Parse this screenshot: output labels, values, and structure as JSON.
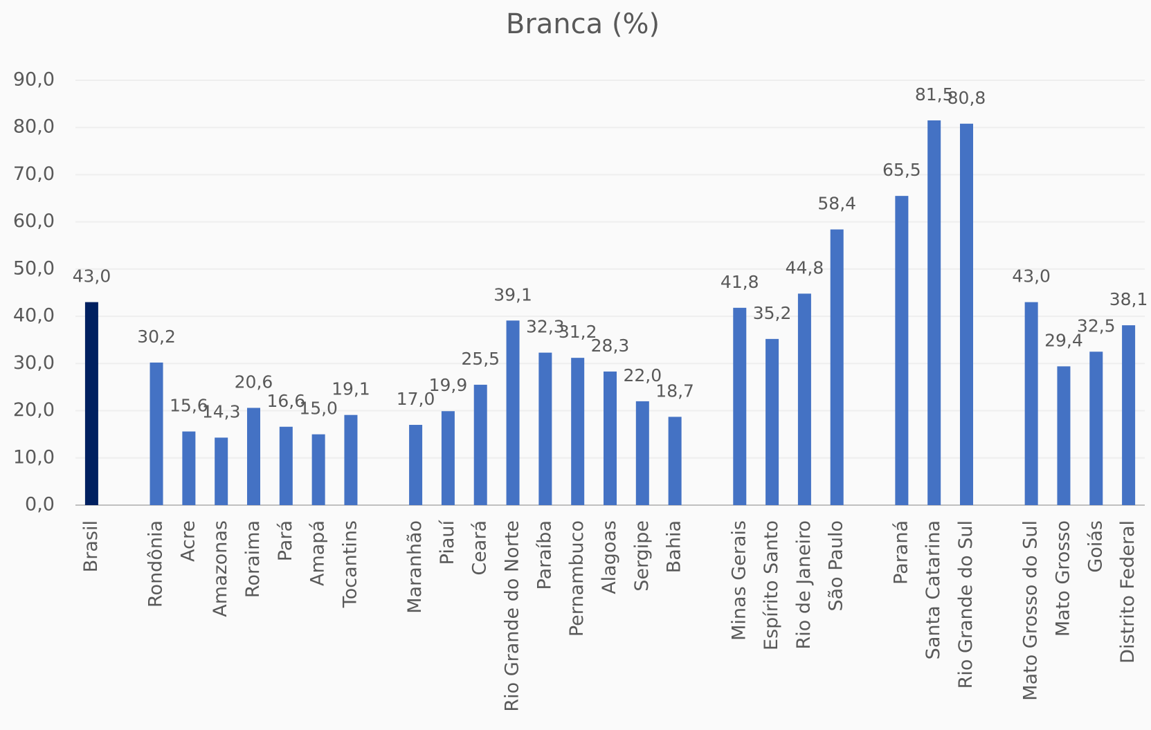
{
  "chart_data": {
    "type": "bar",
    "title": "Branca (%)",
    "categories": [
      "Brasil",
      null,
      "Rondônia",
      "Acre",
      "Amazonas",
      "Roraima",
      "Pará",
      "Amapá",
      "Tocantins",
      null,
      "Maranhão",
      "Piauí",
      "Ceará",
      "Rio Grande do Norte",
      "Paraíba",
      "Pernambuco",
      "Alagoas",
      "Sergipe",
      "Bahia",
      null,
      "Minas Gerais",
      "Espírito Santo",
      "Rio de Janeiro",
      "São Paulo",
      null,
      "Paraná",
      "Santa Catarina",
      "Rio Grande do Sul",
      null,
      "Mato Grosso do Sul",
      "Mato Grosso",
      "Goiás",
      "Distrito Federal"
    ],
    "values": [
      43.0,
      null,
      30.2,
      15.6,
      14.3,
      20.6,
      16.6,
      15.0,
      19.1,
      null,
      17.0,
      19.9,
      25.5,
      39.1,
      32.3,
      31.2,
      28.3,
      22.0,
      18.7,
      null,
      41.8,
      35.2,
      44.8,
      58.4,
      null,
      65.5,
      81.5,
      80.8,
      null,
      43.0,
      29.4,
      32.5,
      38.1
    ],
    "value_labels": [
      "43,0",
      null,
      "30,2",
      "15,6",
      "14,3",
      "20,6",
      "16,6",
      "15,0",
      "19,1",
      null,
      "17,0",
      "19,9",
      "25,5",
      "39,1",
      "32,3",
      "31,2",
      "28,3",
      "22,0",
      "18,7",
      null,
      "41,8",
      "35,2",
      "44,8",
      "58,4",
      null,
      "65,5",
      "81,5",
      "80,8",
      null,
      "43,0",
      "29,4",
      "32,5",
      "38,1"
    ],
    "colors": [
      "#002060",
      null,
      "#4472c4",
      "#4472c4",
      "#4472c4",
      "#4472c4",
      "#4472c4",
      "#4472c4",
      "#4472c4",
      null,
      "#4472c4",
      "#4472c4",
      "#4472c4",
      "#4472c4",
      "#4472c4",
      "#4472c4",
      "#4472c4",
      "#4472c4",
      "#4472c4",
      null,
      "#4472c4",
      "#4472c4",
      "#4472c4",
      "#4472c4",
      null,
      "#4472c4",
      "#4472c4",
      "#4472c4",
      null,
      "#4472c4",
      "#4472c4",
      "#4472c4",
      "#4472c4"
    ],
    "ylim": [
      0,
      90
    ],
    "yticks": [
      {
        "value": 0,
        "label": "0,0"
      },
      {
        "value": 10,
        "label": "10,0"
      },
      {
        "value": 20,
        "label": "20,0"
      },
      {
        "value": 30,
        "label": "30,0"
      },
      {
        "value": 40,
        "label": "40,0"
      },
      {
        "value": 50,
        "label": "50,0"
      },
      {
        "value": 60,
        "label": "60,0"
      },
      {
        "value": 70,
        "label": "70,0"
      },
      {
        "value": 80,
        "label": "80,0"
      },
      {
        "value": 90,
        "label": "90,0"
      }
    ],
    "grid": true
  }
}
